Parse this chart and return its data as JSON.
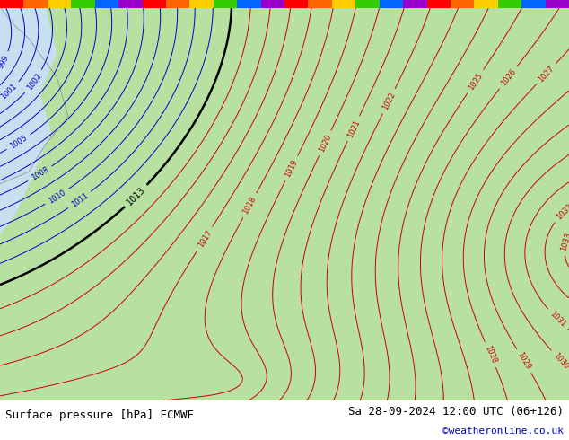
{
  "title_left": "Surface pressure [hPa] ECMWF",
  "title_right": "Sa 28-09-2024 12:00 UTC (06+126)",
  "credit": "©weatheronline.co.uk",
  "bg_color": "#c8dff0",
  "land_color": "#b8e0a0",
  "border_color": "#888888",
  "blue_contour_color": "#0000cc",
  "red_contour_color": "#cc0000",
  "black_contour_color": "#000000",
  "title_font_size": 9,
  "credit_font_size": 8,
  "figsize": [
    6.34,
    4.9
  ],
  "dpi": 100,
  "stripe_colors": [
    "#ff0000",
    "#ff6600",
    "#ffcc00",
    "#33cc00",
    "#0066ff",
    "#9900cc",
    "#ff0000",
    "#ff6600",
    "#ffcc00",
    "#33cc00",
    "#0066ff",
    "#9900cc",
    "#ff0000",
    "#ff6600",
    "#ffcc00",
    "#33cc00",
    "#0066ff",
    "#9900cc",
    "#ff0000",
    "#ff6600",
    "#ffcc00",
    "#33cc00",
    "#0066ff",
    "#9900cc"
  ]
}
